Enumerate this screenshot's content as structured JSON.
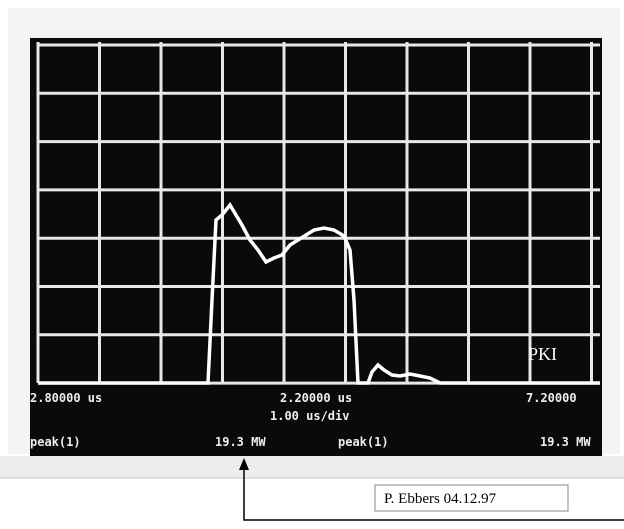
{
  "screen": {
    "left_time": "2.80000 us",
    "center_time": "2.20000 us",
    "right_time": "7.20000",
    "timebase": "1.00 us/div",
    "left_measure": "peak(1)",
    "left_power": "19.3 MW",
    "right_measure": "peak(1)",
    "right_power": "19.3 MW",
    "logo": "PKI"
  },
  "caption": "P. Ebbers 04.12.97"
}
